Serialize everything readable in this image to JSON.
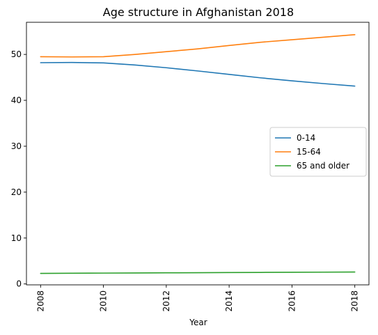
{
  "chart_data": {
    "type": "line",
    "title": "Age structure in Afghanistan 2018",
    "xlabel": "Year",
    "ylabel": "",
    "x": [
      2008,
      2009,
      2010,
      2011,
      2012,
      2013,
      2014,
      2015,
      2016,
      2017,
      2018
    ],
    "xlim": [
      2007.55,
      2018.45
    ],
    "ylim": [
      -0.2,
      57.0
    ],
    "xticks": [
      2008,
      2010,
      2012,
      2014,
      2016,
      2018
    ],
    "yticks": [
      0,
      10,
      20,
      30,
      40,
      50
    ],
    "series": [
      {
        "name": "0-14",
        "color": "#1f77b4",
        "values": [
          48.2,
          48.25,
          48.15,
          47.7,
          47.1,
          46.4,
          45.65,
          44.9,
          44.25,
          43.65,
          43.1
        ]
      },
      {
        "name": "15-64",
        "color": "#ff7f0e",
        "values": [
          49.5,
          49.45,
          49.5,
          50.0,
          50.6,
          51.2,
          51.95,
          52.65,
          53.2,
          53.75,
          54.3
        ]
      },
      {
        "name": "65 and older",
        "color": "#2ca02c",
        "values": [
          2.3,
          2.33,
          2.36,
          2.39,
          2.42,
          2.45,
          2.48,
          2.51,
          2.54,
          2.57,
          2.6
        ]
      }
    ],
    "grid": false,
    "legend": "center-right"
  }
}
